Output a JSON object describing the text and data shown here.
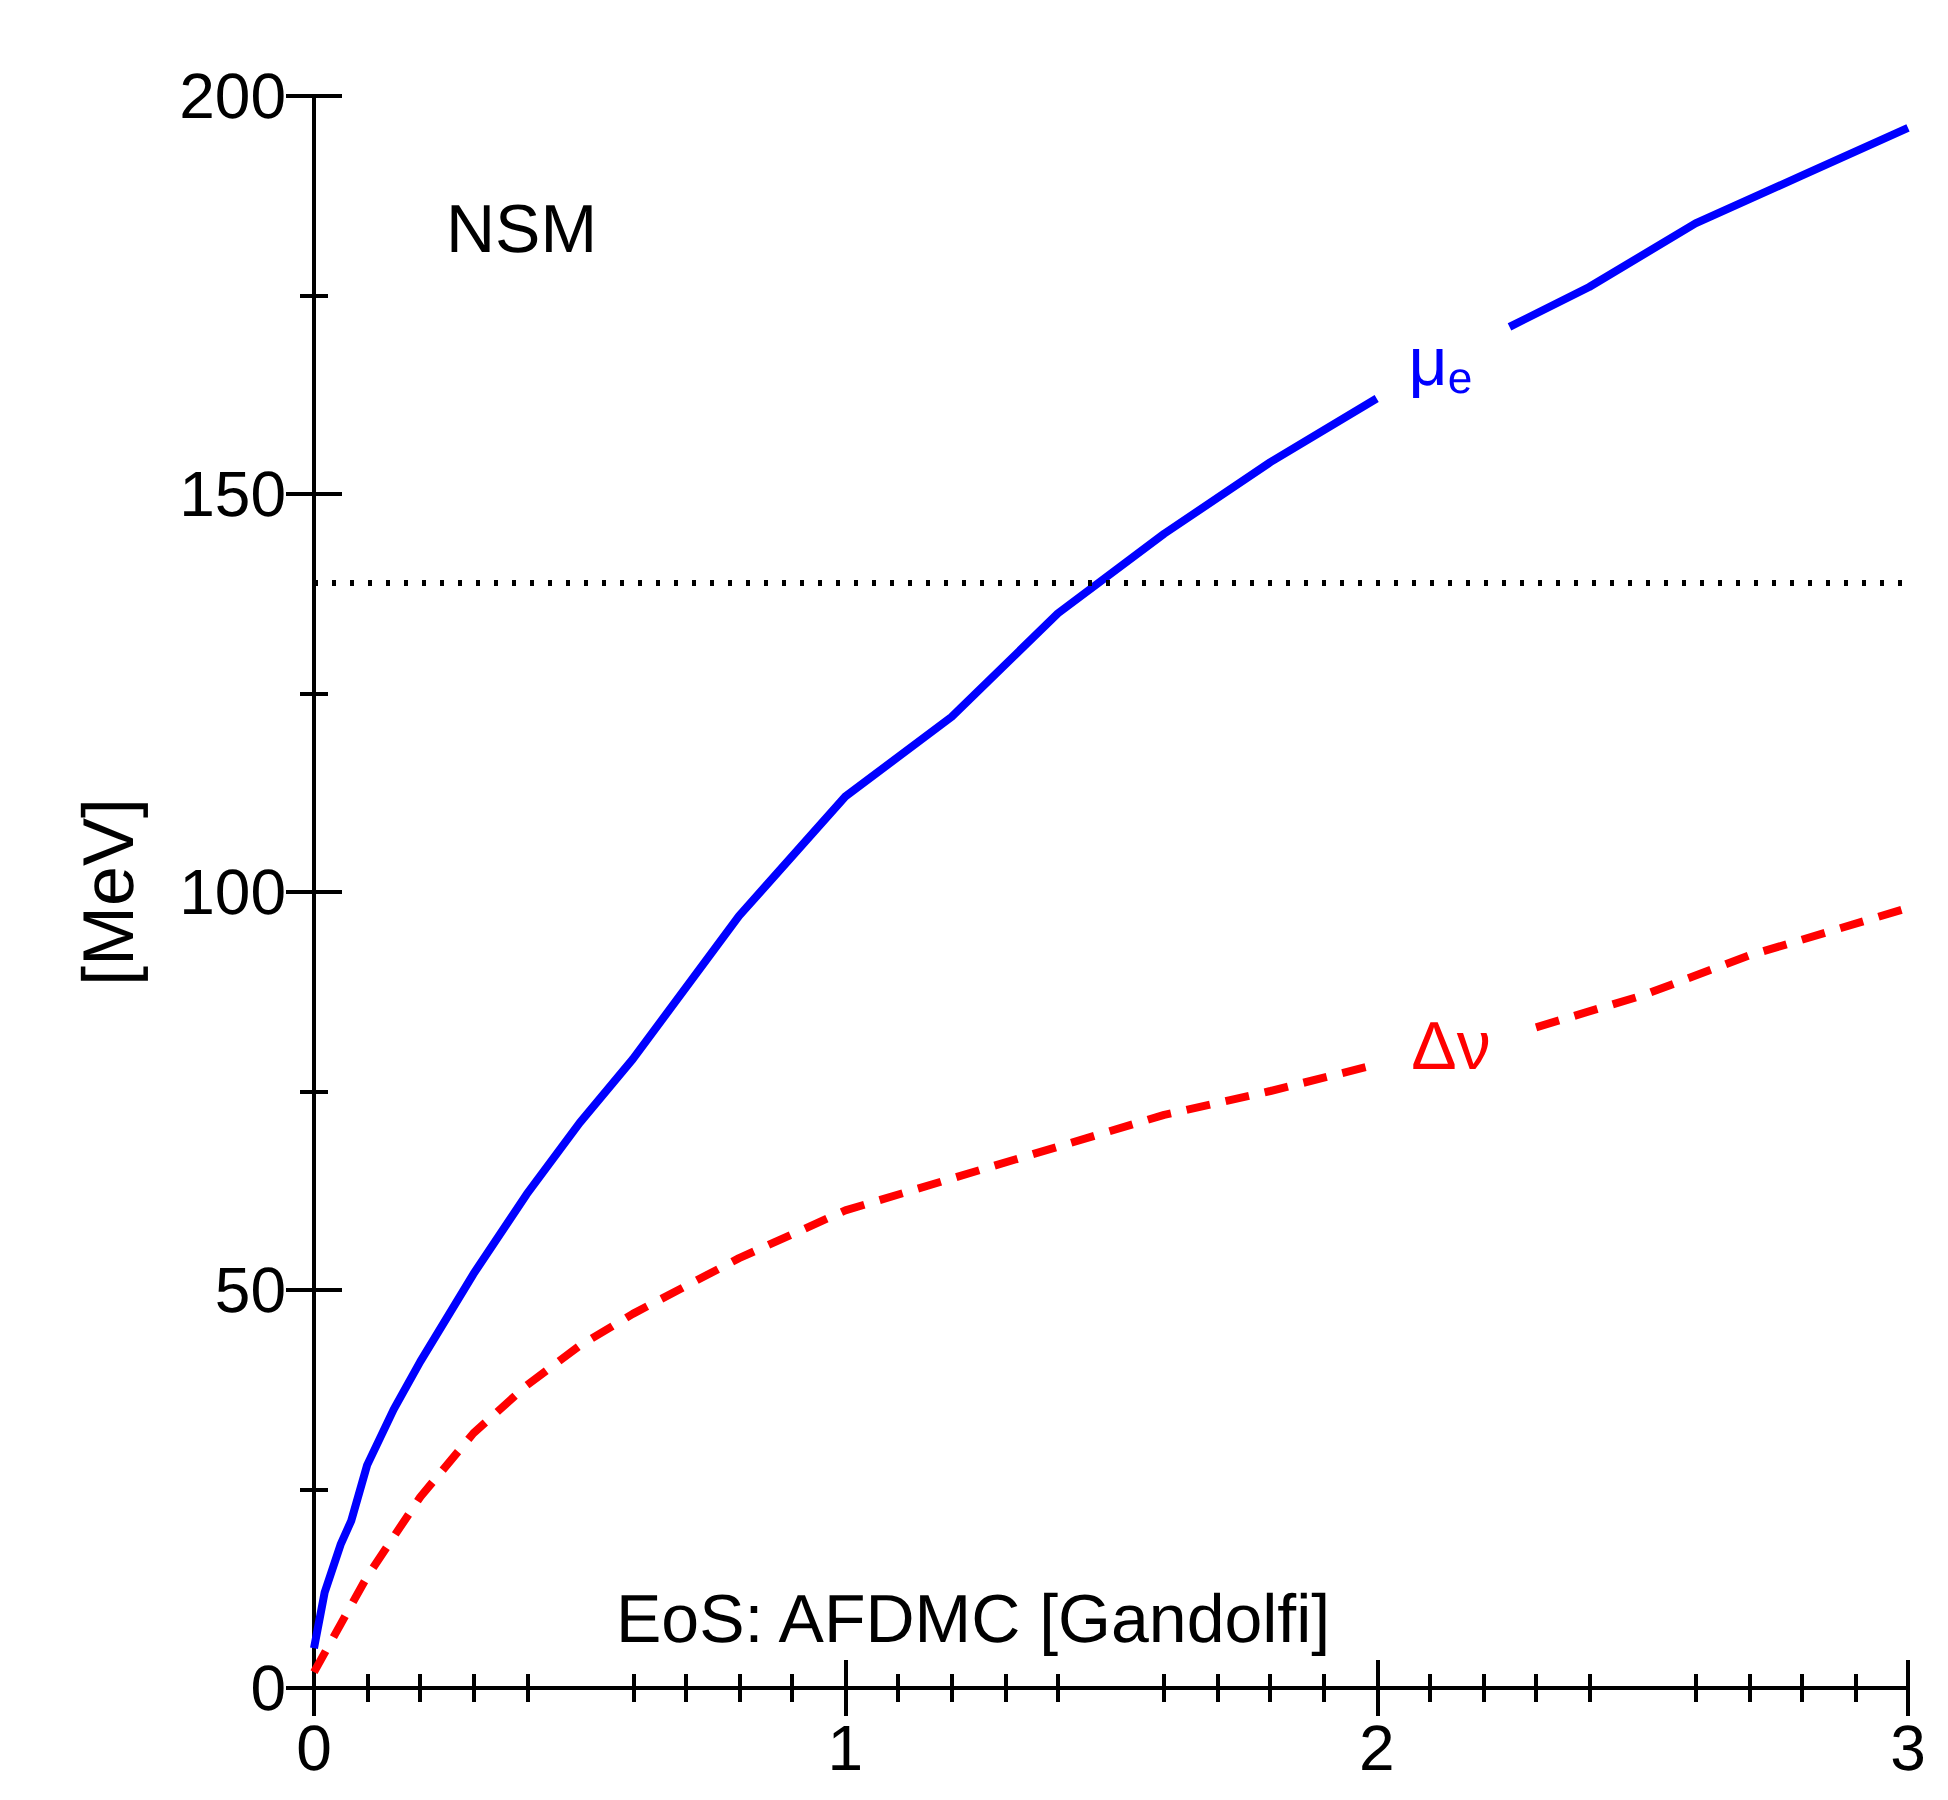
{
  "chart_data": {
    "type": "line",
    "ylabel": "[MeV]",
    "xlim": [
      0,
      3
    ],
    "xticks": [
      0,
      1,
      2,
      3
    ],
    "ylim": [
      0,
      200
    ],
    "yticks": [
      0,
      50,
      100,
      150,
      200
    ],
    "grid": false,
    "marker": "none",
    "series": [
      {
        "name": "μ$_{e}$",
        "color": "#0000ff",
        "line_style": "solid",
        "x": [
          0,
          0.02,
          0.05,
          0.07,
          0.1,
          0.15,
          0.2,
          0.3,
          0.4,
          0.5,
          0.6,
          0.8,
          1,
          1.2,
          1.4,
          1.6,
          1.8,
          2.0,
          2.12,
          2.25,
          2.4,
          2.6,
          2.8,
          3
        ],
        "values": [
          5,
          12,
          18,
          21,
          28,
          35,
          41,
          52,
          62,
          71,
          79,
          97,
          112,
          122,
          135,
          145,
          154,
          162,
          null,
          171,
          176,
          184,
          190,
          196
        ]
      },
      {
        "name": "Δν",
        "color": "#ff0000",
        "line_style": "dashed",
        "x": [
          0,
          0.05,
          0.1,
          0.2,
          0.3,
          0.4,
          0.5,
          0.6,
          0.8,
          1,
          1.2,
          1.4,
          1.6,
          1.8,
          1.98,
          2.14,
          2.3,
          2.5,
          2.7,
          2.85,
          3
        ],
        "values": [
          2,
          8,
          14,
          24,
          32,
          38,
          43,
          47,
          54,
          60,
          64,
          68,
          72,
          75,
          78,
          null,
          83,
          87,
          92,
          95,
          98
        ]
      }
    ],
    "ref_lines": [
      {
        "axis": "y",
        "value": 139,
        "color": "#000000",
        "line_style": "dotted"
      }
    ],
    "annotations": [
      "NSM",
      "EoS: AFDMC [Gandolfi]"
    ]
  }
}
